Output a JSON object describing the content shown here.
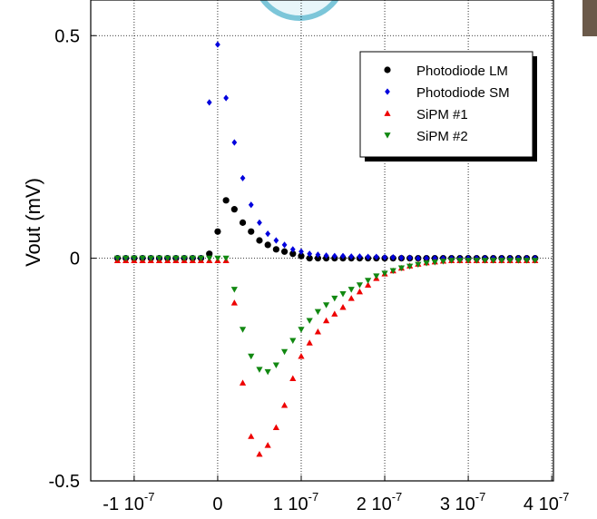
{
  "chart_data": {
    "type": "scatter",
    "y_label": "Vout (mV)",
    "x": [
      -1.2e-07,
      -1.1e-07,
      -1e-07,
      -9e-08,
      -8e-08,
      -7e-08,
      -6e-08,
      -5e-08,
      -4e-08,
      -3e-08,
      -2e-08,
      -1e-08,
      0,
      1e-08,
      2e-08,
      3e-08,
      4e-08,
      5e-08,
      6e-08,
      7e-08,
      8e-08,
      9e-08,
      1e-07,
      1.1e-07,
      1.2e-07,
      1.3e-07,
      1.4e-07,
      1.5e-07,
      1.6e-07,
      1.7e-07,
      1.8e-07,
      1.9e-07,
      2e-07,
      2.1e-07,
      2.2e-07,
      2.3e-07,
      2.4e-07,
      2.5e-07,
      2.6e-07,
      2.7e-07,
      2.8e-07,
      2.9e-07,
      3e-07,
      3.1e-07,
      3.2e-07,
      3.3e-07,
      3.4e-07,
      3.5e-07,
      3.6e-07,
      3.7e-07,
      3.8e-07
    ],
    "series": [
      {
        "name": "Photodiode LM",
        "color": "#000000",
        "marker": "circle",
        "values": [
          0,
          0,
          0,
          0,
          0,
          0,
          0,
          0,
          0,
          0,
          0,
          0.01,
          0.06,
          0.13,
          0.11,
          0.08,
          0.06,
          0.04,
          0.03,
          0.02,
          0.015,
          0.01,
          0.005,
          0,
          0,
          0,
          0,
          0,
          0,
          0,
          0,
          0,
          0,
          0,
          0,
          0,
          0,
          0,
          0,
          0,
          0,
          0,
          0,
          0,
          0,
          0,
          0,
          0,
          0,
          0,
          0
        ]
      },
      {
        "name": "Photodiode SM",
        "color": "#0000dd",
        "marker": "diamond",
        "values": [
          0,
          0,
          0,
          0,
          0,
          0,
          0,
          0,
          0,
          0,
          0,
          0.35,
          0.48,
          0.36,
          0.26,
          0.18,
          0.12,
          0.08,
          0.055,
          0.04,
          0.03,
          0.02,
          0.015,
          0.01,
          0.008,
          0.006,
          0.005,
          0.005,
          0.004,
          0.004,
          0.003,
          0.003,
          0.002,
          0.002,
          0.001,
          0.001,
          0,
          0,
          0,
          0,
          0,
          0,
          0,
          0,
          0,
          0,
          0,
          0,
          0,
          0,
          0
        ]
      },
      {
        "name": "SiPM #1",
        "color": "#ee0000",
        "marker": "triangle-up",
        "values": [
          -0.005,
          -0.005,
          -0.005,
          -0.005,
          -0.005,
          -0.005,
          -0.005,
          -0.005,
          -0.005,
          -0.005,
          -0.005,
          -0.005,
          -0.005,
          -0.005,
          -0.1,
          -0.28,
          -0.4,
          -0.44,
          -0.42,
          -0.38,
          -0.33,
          -0.27,
          -0.22,
          -0.19,
          -0.165,
          -0.14,
          -0.125,
          -0.11,
          -0.09,
          -0.075,
          -0.06,
          -0.045,
          -0.035,
          -0.028,
          -0.022,
          -0.017,
          -0.013,
          -0.01,
          -0.008,
          -0.006,
          -0.005,
          -0.005,
          -0.005,
          -0.005,
          -0.005,
          -0.005,
          -0.005,
          -0.005,
          -0.005,
          -0.005,
          -0.005
        ]
      },
      {
        "name": "SiPM #2",
        "color": "#118811",
        "marker": "triangle-down",
        "values": [
          0,
          0,
          0,
          0,
          0,
          0,
          0,
          0,
          0,
          0,
          0,
          0,
          0,
          0,
          -0.07,
          -0.16,
          -0.22,
          -0.25,
          -0.255,
          -0.24,
          -0.21,
          -0.185,
          -0.16,
          -0.14,
          -0.12,
          -0.105,
          -0.09,
          -0.08,
          -0.07,
          -0.06,
          -0.05,
          -0.04,
          -0.034,
          -0.028,
          -0.022,
          -0.018,
          -0.014,
          -0.011,
          -0.009,
          -0.007,
          -0.005,
          -0.005,
          -0.005,
          -0.005,
          -0.005,
          -0.005,
          -0.005,
          -0.005,
          -0.005,
          -0.005,
          -0.005
        ]
      }
    ],
    "xlim": [
      -1.52e-07,
      4.02e-07
    ],
    "ylim": [
      -0.5,
      0.58
    ],
    "xticks": [
      {
        "value": -1e-07,
        "label": "-1 10",
        "sup": "-7"
      },
      0,
      {
        "value": 1e-07,
        "label": "1 10",
        "sup": "-7"
      },
      {
        "value": 2e-07,
        "label": "2 10",
        "sup": "-7"
      },
      {
        "value": 3e-07,
        "label": "3 10",
        "sup": "-7"
      },
      {
        "value": 4e-07,
        "label": "4 10",
        "sup": "-7"
      }
    ],
    "yticks": [
      -0.5,
      0,
      0.5
    ],
    "grid": true,
    "legend": "upper right"
  }
}
